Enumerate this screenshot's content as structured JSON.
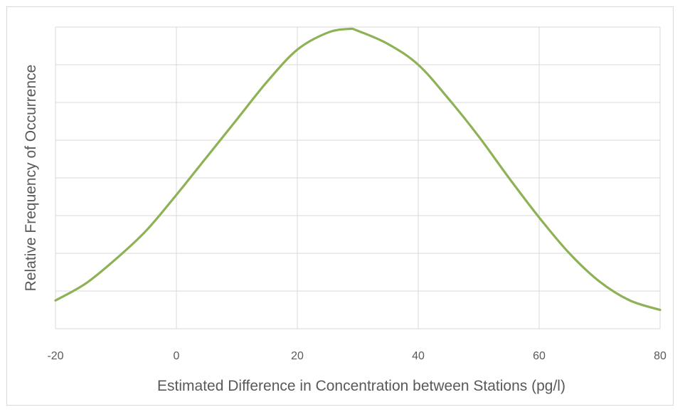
{
  "chart_data": {
    "type": "line",
    "title": "",
    "xlabel": "Estimated Difference in Concentration between Stations (pg/l)",
    "ylabel": "Relative Frequency of Occurrence",
    "xlim": [
      -20,
      80
    ],
    "ylim": [
      0,
      8
    ],
    "x_ticks": [
      "-20",
      "0",
      "20",
      "40",
      "60",
      "80"
    ],
    "y_ticks_labeled": false,
    "grid": true,
    "legend": "none",
    "series": [
      {
        "color": "#8db255",
        "x": [
          -20,
          -15,
          -10,
          -5,
          0,
          5,
          10,
          15,
          20,
          25,
          28.5,
          30,
          35,
          40,
          45,
          50,
          55,
          60,
          65,
          70,
          75,
          80
        ],
        "y": [
          0.75,
          1.2,
          1.85,
          2.6,
          3.55,
          4.55,
          5.55,
          6.55,
          7.4,
          7.85,
          7.95,
          7.9,
          7.55,
          7.0,
          6.1,
          5.1,
          4.0,
          2.95,
          2.0,
          1.25,
          0.75,
          0.5
        ]
      }
    ]
  }
}
